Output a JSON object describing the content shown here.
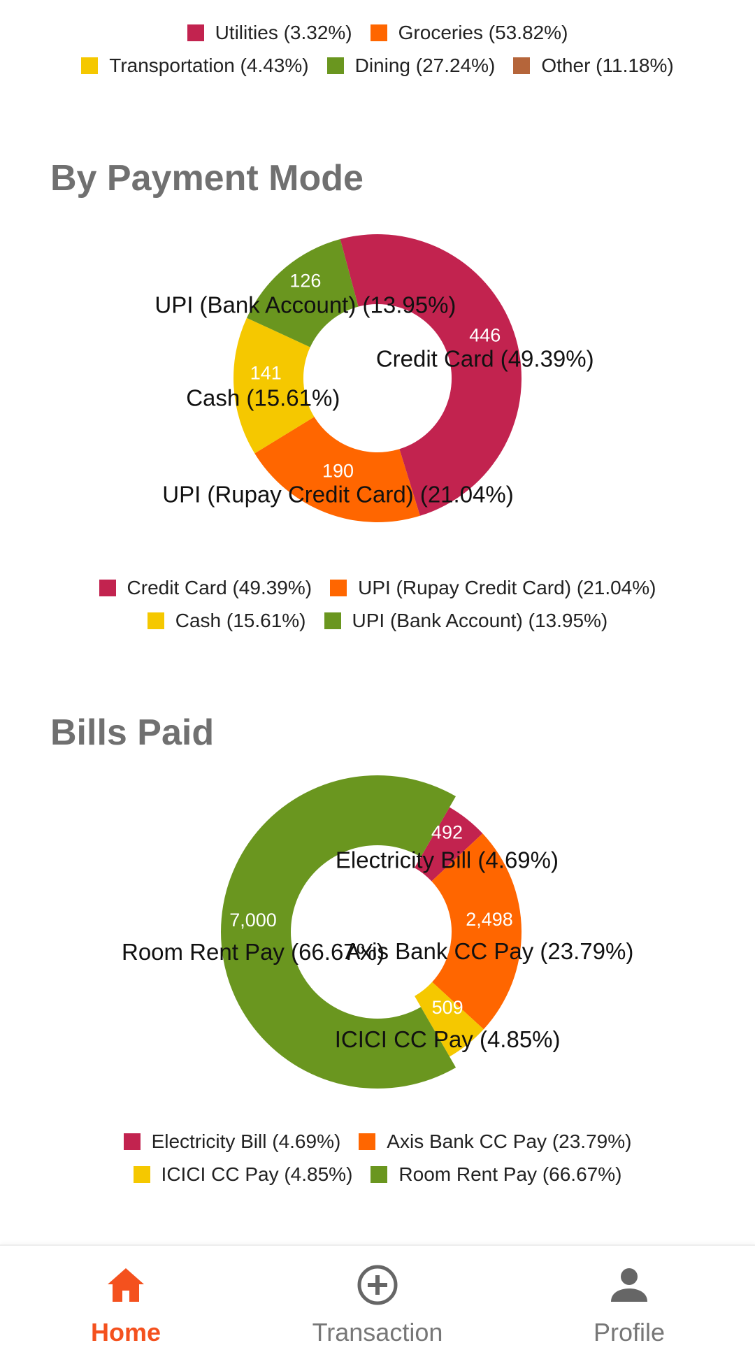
{
  "colors": {
    "crimson": "#c2234f",
    "orange": "#ff6600",
    "yellow": "#f5c800",
    "green": "#6a961f",
    "brown": "#b5653a",
    "title_gray": "#707070",
    "accent": "#f4511e",
    "nav_gray": "#777777"
  },
  "category_legend": [
    [
      {
        "label": "Utilities (3.32%)",
        "color": "#c2234f"
      },
      {
        "label": "Groceries (53.82%)",
        "color": "#ff6600"
      }
    ],
    [
      {
        "label": "Transportation (4.43%)",
        "color": "#f5c800"
      },
      {
        "label": "Dining (27.24%)",
        "color": "#6a961f"
      },
      {
        "label": "Other (11.18%)",
        "color": "#b5653a"
      }
    ]
  ],
  "sections": {
    "payment_mode": {
      "title": "By Payment Mode"
    },
    "bills_paid": {
      "title": "Bills Paid"
    }
  },
  "chart_data": [
    {
      "type": "pie",
      "variant": "donut",
      "title": "By Payment Mode",
      "categories": [
        "Credit Card",
        "UPI (Rupay Credit Card)",
        "Cash",
        "UPI (Bank Account)"
      ],
      "values": [
        446,
        190,
        141,
        126
      ],
      "value_labels": [
        "446",
        "190",
        "141",
        "126"
      ],
      "percent_labels": [
        "Credit Card (49.39%)",
        "UPI (Rupay Credit Card) (21.04%)",
        "Cash (15.61%)",
        "UPI (Bank Account) (13.95%)"
      ],
      "colors": [
        "#c2234f",
        "#ff6600",
        "#f5c800",
        "#6a961f"
      ],
      "start_angle_deg": -15,
      "highlighted_index": -1,
      "legend": {
        "placement": "bottom",
        "rows": [
          [
            0,
            1
          ],
          [
            2,
            3
          ]
        ]
      }
    },
    {
      "type": "pie",
      "variant": "donut",
      "title": "Bills Paid",
      "categories": [
        "Electricity Bill",
        "Axis Bank CC Pay",
        "ICICI CC Pay",
        "Room Rent Pay"
      ],
      "values": [
        492,
        2498,
        509,
        7000
      ],
      "value_labels": [
        "492",
        "2,498",
        "509",
        "7,000"
      ],
      "percent_labels": [
        "Electricity Bill (4.69%)",
        "Axis Bank CC Pay (23.79%)",
        "ICICI CC Pay (4.85%)",
        "Room Rent Pay (66.67%)"
      ],
      "colors": [
        "#c2234f",
        "#ff6600",
        "#f5c800",
        "#6a961f"
      ],
      "start_angle_deg": 30,
      "highlighted_index": 3,
      "legend": {
        "placement": "bottom",
        "rows": [
          [
            0,
            1
          ],
          [
            2,
            3
          ]
        ]
      }
    }
  ],
  "bottom_nav": {
    "items": [
      {
        "label": "Home",
        "icon": "home-icon",
        "active": true
      },
      {
        "label": "Transaction",
        "icon": "add-circle-icon",
        "active": false
      },
      {
        "label": "Profile",
        "icon": "person-icon",
        "active": false
      }
    ]
  }
}
